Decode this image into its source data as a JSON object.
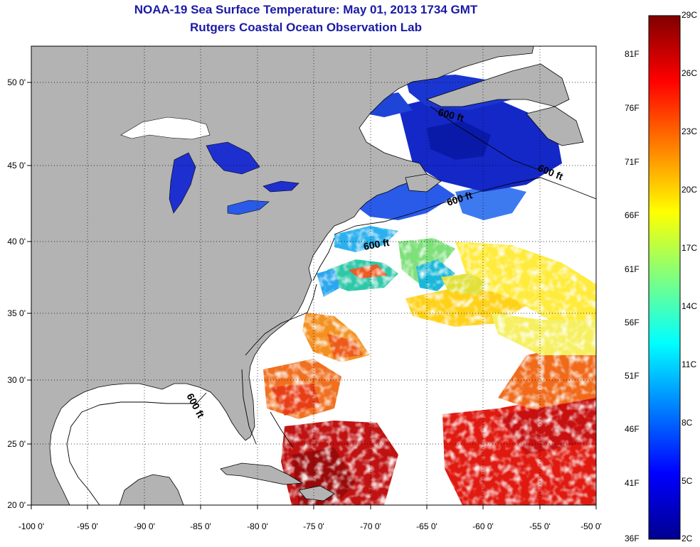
{
  "header": {
    "title": "NOAA-19 Sea Surface Temperature:  May 01, 2013 1734 GMT",
    "subtitle": "Rutgers Coastal Ocean Observation Lab"
  },
  "map": {
    "lon_ticks": [
      "-100 0'",
      "-95 0'",
      "-90 0'",
      "-85 0'",
      "-80 0'",
      "-75 0'",
      "-70 0'",
      "-65 0'",
      "-60 0'",
      "-55 0'",
      "-50 0'"
    ],
    "lat_ticks": [
      "50 0'",
      "45 0'",
      "40 0'",
      "35 0'",
      "30 0'",
      "25 0'",
      "20 0'"
    ],
    "contour_labels": [
      "600 ft",
      "600 ft",
      "600 ft",
      "600 ft",
      "600 ft"
    ],
    "colors": {
      "land": "#b3b3b3",
      "cloud": "#ffffff",
      "lake_water": "#1e2fd0"
    }
  },
  "colorbar": {
    "celsius": [
      "29C",
      "26C",
      "23C",
      "20C",
      "17C",
      "14C",
      "11C",
      "8C",
      "5C",
      "2C"
    ],
    "fahrenheit": [
      "81F",
      "76F",
      "71F",
      "66F",
      "61F",
      "56F",
      "51F",
      "46F",
      "41F",
      "36F"
    ],
    "colormap": "jet"
  }
}
